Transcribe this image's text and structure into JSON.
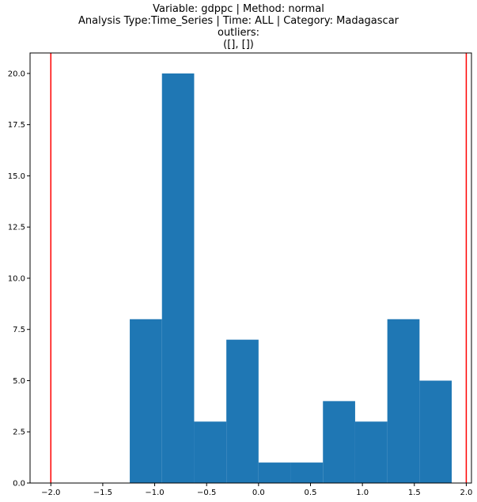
{
  "chart_data": {
    "type": "bar",
    "title_lines": [
      "Variable: gdppc | Method: normal",
      "Analysis Type:Time_Series | Time: ALL | Category: Madagascar",
      "outliers:",
      "([], [])"
    ],
    "bins": [
      {
        "x0": -1.24,
        "x1": -0.93,
        "count": 8
      },
      {
        "x0": -0.93,
        "x1": -0.62,
        "count": 20
      },
      {
        "x0": -0.62,
        "x1": -0.31,
        "count": 3
      },
      {
        "x0": -0.31,
        "x1": 0.0,
        "count": 7
      },
      {
        "x0": 0.0,
        "x1": 0.31,
        "count": 1
      },
      {
        "x0": 0.31,
        "x1": 0.62,
        "count": 1
      },
      {
        "x0": 0.62,
        "x1": 0.93,
        "count": 4
      },
      {
        "x0": 0.93,
        "x1": 1.24,
        "count": 3
      },
      {
        "x0": 1.24,
        "x1": 1.55,
        "count": 8
      },
      {
        "x0": 1.55,
        "x1": 1.86,
        "count": 5
      }
    ],
    "vlines": [
      -2.0,
      2.0
    ],
    "xlim": [
      -2.2,
      2.05
    ],
    "ylim": [
      0,
      21
    ],
    "xticks": [
      -2.0,
      -1.5,
      -1.0,
      -0.5,
      0.0,
      0.5,
      1.0,
      1.5,
      2.0
    ],
    "xtick_labels": [
      "−2.0",
      "−1.5",
      "−1.0",
      "−0.5",
      "0.0",
      "0.5",
      "1.0",
      "1.5",
      "2.0"
    ],
    "yticks": [
      0.0,
      2.5,
      5.0,
      7.5,
      10.0,
      12.5,
      15.0,
      17.5,
      20.0
    ],
    "ytick_labels": [
      "0.0",
      "2.5",
      "5.0",
      "7.5",
      "10.0",
      "12.5",
      "15.0",
      "17.5",
      "20.0"
    ],
    "xlabel": "",
    "ylabel": "",
    "bar_color": "#1f77b4",
    "vline_color": "#ff0000"
  }
}
